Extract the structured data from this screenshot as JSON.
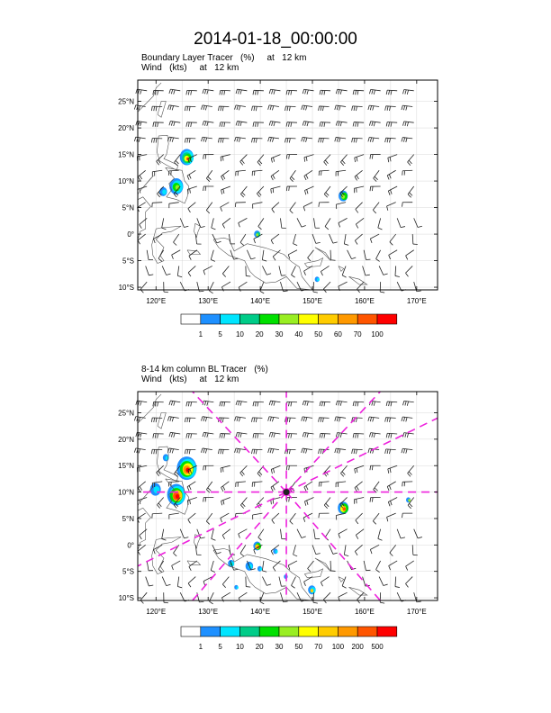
{
  "title": "2014-01-18_00:00:00",
  "panel1": {
    "subtitle_line1": "Boundary Layer Tracer   (%)     at   12 km",
    "subtitle_line2": "Wind   (kts)     at   12 km",
    "colorbar_labels": [
      "1",
      "5",
      "10",
      "20",
      "30",
      "40",
      "50",
      "60",
      "70",
      "100"
    ]
  },
  "panel2": {
    "subtitle_line1": "8-14 km column BL Tracer   (%)",
    "subtitle_line2": "Wind   (kts)     at   12 km",
    "colorbar_labels": [
      "1",
      "5",
      "10",
      "20",
      "30",
      "50",
      "70",
      "100",
      "200",
      "500"
    ]
  },
  "lat_labels": [
    "25°N",
    "20°N",
    "15°N",
    "10°N",
    "5°N",
    "0°",
    "5°S",
    "10°S"
  ],
  "lon_labels": [
    "120°E",
    "130°E",
    "140°E",
    "150°E",
    "160°E",
    "170°E"
  ],
  "colors": {
    "colorbar": [
      "#ffffff",
      "#1e90ff",
      "#00e5ff",
      "#00cc88",
      "#00e000",
      "#99ee22",
      "#ffff00",
      "#ffcc00",
      "#ff9900",
      "#ff5500",
      "#ff0000"
    ],
    "radial_lines": "#ee22dd"
  }
}
